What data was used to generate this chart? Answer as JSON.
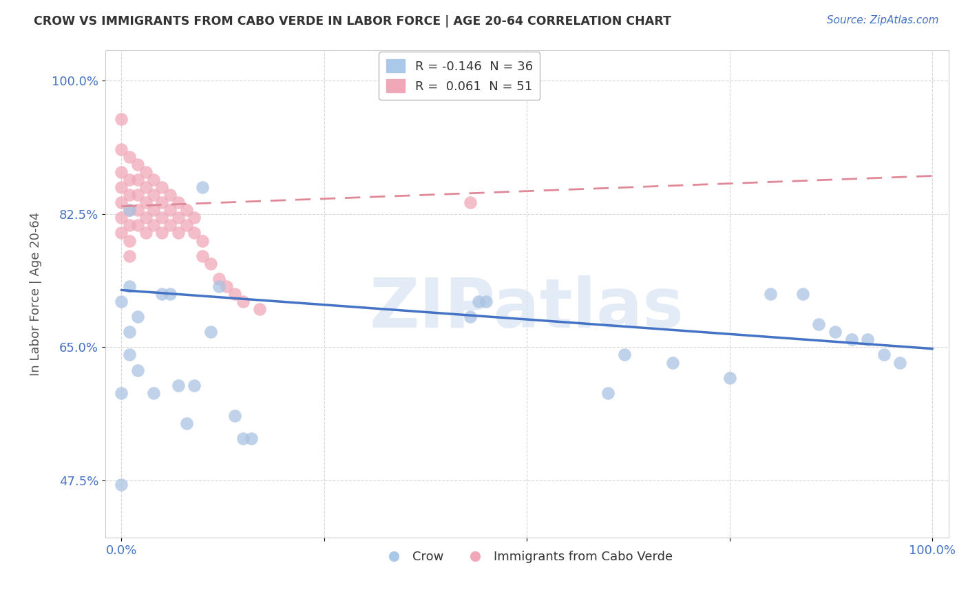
{
  "title": "CROW VS IMMIGRANTS FROM CABO VERDE IN LABOR FORCE | AGE 20-64 CORRELATION CHART",
  "source": "Source: ZipAtlas.com",
  "ylabel": "In Labor Force | Age 20-64",
  "xlim": [
    -0.02,
    1.02
  ],
  "ylim": [
    0.4,
    1.04
  ],
  "ytick_positions": [
    0.475,
    0.65,
    0.825,
    1.0
  ],
  "ytick_labels": [
    "47.5%",
    "65.0%",
    "82.5%",
    "100.0%"
  ],
  "crow_r": -0.146,
  "crow_n": 36,
  "cabo_r": 0.061,
  "cabo_n": 51,
  "watermark": "ZIPatlas",
  "crow_color": "#aac4e2",
  "cabo_color": "#f0a8b8",
  "crow_line_color": "#4472c4",
  "cabo_line_color": "#e08898",
  "crow_scatter_x": [
    0.0,
    0.0,
    0.0,
    0.01,
    0.01,
    0.01,
    0.01,
    0.02,
    0.02,
    0.04,
    0.05,
    0.06,
    0.07,
    0.08,
    0.09,
    0.1,
    0.11,
    0.12,
    0.14,
    0.15,
    0.16,
    0.43,
    0.44,
    0.45,
    0.6,
    0.62,
    0.68,
    0.75,
    0.8,
    0.84,
    0.86,
    0.88,
    0.9,
    0.92,
    0.94,
    0.96
  ],
  "crow_scatter_y": [
    0.59,
    0.71,
    0.47,
    0.67,
    0.64,
    0.73,
    0.83,
    0.62,
    0.69,
    0.59,
    0.72,
    0.72,
    0.6,
    0.55,
    0.6,
    0.86,
    0.67,
    0.73,
    0.56,
    0.53,
    0.53,
    0.69,
    0.71,
    0.71,
    0.59,
    0.64,
    0.63,
    0.61,
    0.72,
    0.72,
    0.68,
    0.67,
    0.66,
    0.66,
    0.64,
    0.63
  ],
  "cabo_scatter_x": [
    0.0,
    0.0,
    0.0,
    0.0,
    0.0,
    0.0,
    0.0,
    0.01,
    0.01,
    0.01,
    0.01,
    0.01,
    0.01,
    0.01,
    0.02,
    0.02,
    0.02,
    0.02,
    0.02,
    0.03,
    0.03,
    0.03,
    0.03,
    0.03,
    0.04,
    0.04,
    0.04,
    0.04,
    0.05,
    0.05,
    0.05,
    0.05,
    0.06,
    0.06,
    0.06,
    0.07,
    0.07,
    0.07,
    0.08,
    0.08,
    0.09,
    0.09,
    0.1,
    0.1,
    0.11,
    0.12,
    0.13,
    0.14,
    0.15,
    0.17,
    0.43
  ],
  "cabo_scatter_y": [
    0.95,
    0.91,
    0.88,
    0.86,
    0.84,
    0.82,
    0.8,
    0.9,
    0.87,
    0.85,
    0.83,
    0.81,
    0.79,
    0.77,
    0.89,
    0.87,
    0.85,
    0.83,
    0.81,
    0.88,
    0.86,
    0.84,
    0.82,
    0.8,
    0.87,
    0.85,
    0.83,
    0.81,
    0.86,
    0.84,
    0.82,
    0.8,
    0.85,
    0.83,
    0.81,
    0.84,
    0.82,
    0.8,
    0.83,
    0.81,
    0.82,
    0.8,
    0.79,
    0.77,
    0.76,
    0.74,
    0.73,
    0.72,
    0.71,
    0.7,
    0.84
  ]
}
